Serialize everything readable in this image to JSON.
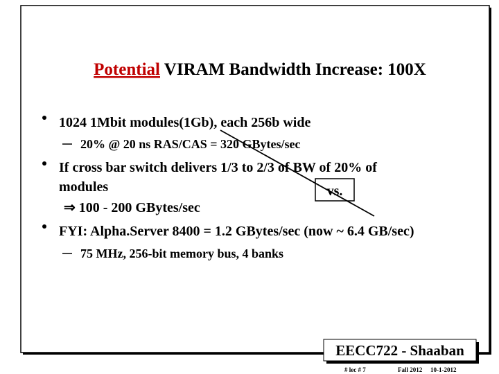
{
  "title": {
    "highlight": "Potential",
    "rest": "VIRAM Bandwidth Increase: 100X"
  },
  "bullets": [
    {
      "lines": [
        "1024 1Mbit modules(1Gb), each 256b wide"
      ],
      "sub": [
        "20% @ 20 ns RAS/CAS = 320 GBytes/sec"
      ]
    },
    {
      "lines": [
        "If cross bar switch delivers 1/3 to 2/3 of BW of 20% of",
        "modules",
        "⇒ 100 - 200 GBytes/sec"
      ],
      "callout": "vs.",
      "sub": []
    },
    {
      "lines": [
        "FYI: Alpha.Server 8400 = 1.2 GBytes/sec (now ~ 6.4 GB/sec)"
      ],
      "sub": [
        "75 MHz, 256-bit memory bus, 4 banks"
      ]
    }
  ],
  "footer": {
    "badge": "EECC722 - Shaaban",
    "lecture": "# lec # 7",
    "term": "Fall 2012",
    "date": "10-1-2012"
  }
}
